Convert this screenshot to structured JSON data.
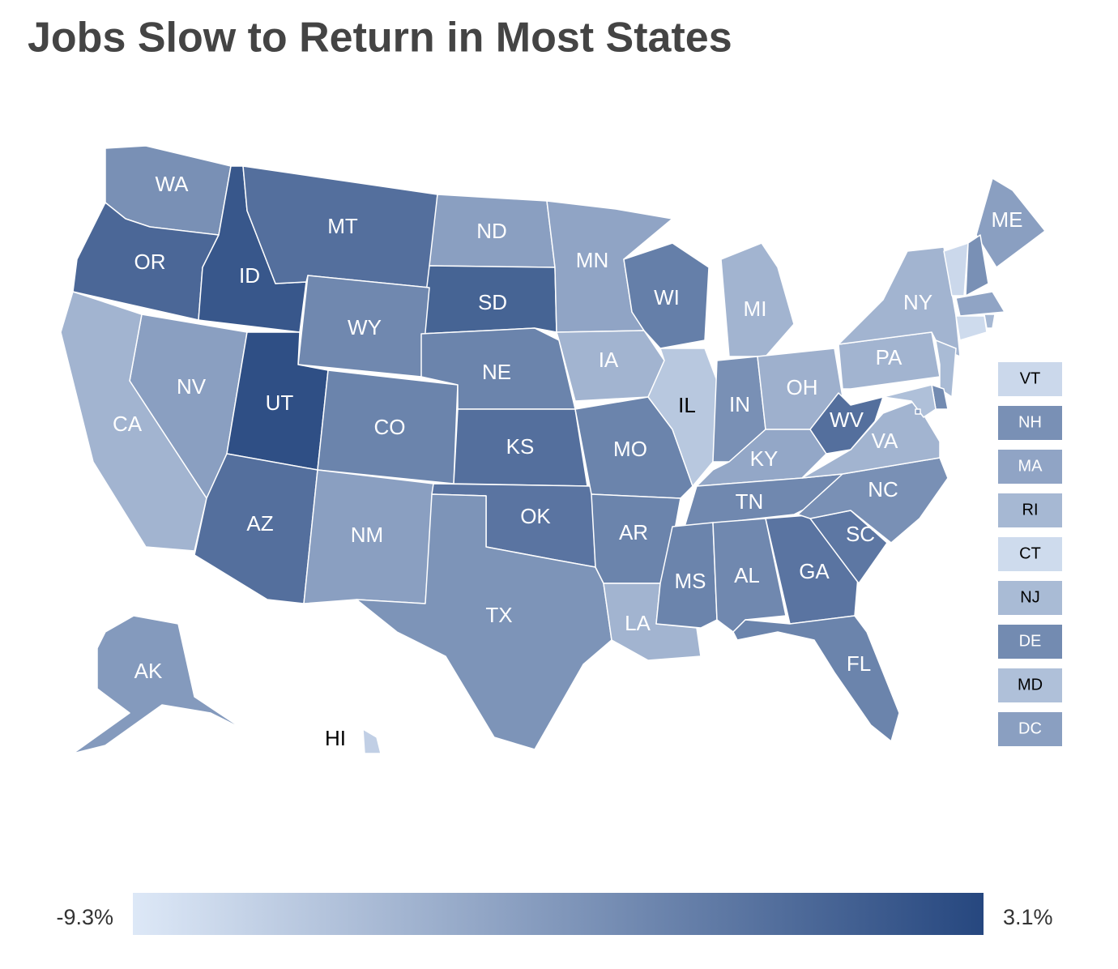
{
  "chart_data": {
    "type": "choropleth",
    "title": "Jobs Slow to Return in Most States",
    "colors": [
      "#dde8f7",
      "#26477f"
    ],
    "colorbar": [
      {
        "value": -9.3,
        "label": "-9.3%"
      },
      {
        "value": 3.1,
        "label": "3.1%"
      }
    ],
    "states": [
      {
        "name": "WA",
        "value": -2.5
      },
      {
        "name": "OR",
        "value": 0.6
      },
      {
        "name": "ID",
        "value": 1.9
      },
      {
        "name": "MT",
        "value": 0.0
      },
      {
        "name": "ND",
        "value": -3.7
      },
      {
        "name": "SD",
        "value": 0.9
      },
      {
        "name": "WY",
        "value": -1.9
      },
      {
        "name": "NV",
        "value": -3.7
      },
      {
        "name": "UT",
        "value": 2.5
      },
      {
        "name": "CA",
        "value": -5.3
      },
      {
        "name": "CO",
        "value": -1.6
      },
      {
        "name": "NE",
        "value": -1.6
      },
      {
        "name": "KS",
        "value": 0.0
      },
      {
        "name": "AZ",
        "value": 0.0
      },
      {
        "name": "NM",
        "value": -3.7
      },
      {
        "name": "OK",
        "value": -0.4
      },
      {
        "name": "TX",
        "value": -2.8
      },
      {
        "name": "MN",
        "value": -4.1
      },
      {
        "name": "IA",
        "value": -5.3
      },
      {
        "name": "MO",
        "value": -1.6
      },
      {
        "name": "AR",
        "value": -1.6
      },
      {
        "name": "LA",
        "value": -5.3
      },
      {
        "name": "WI",
        "value": -1.2
      },
      {
        "name": "IL",
        "value": -6.8
      },
      {
        "name": "MI",
        "value": -5.3
      },
      {
        "name": "IN",
        "value": -2.5
      },
      {
        "name": "OH",
        "value": -5.0
      },
      {
        "name": "KY",
        "value": -4.3
      },
      {
        "name": "TN",
        "value": -1.9
      },
      {
        "name": "MS",
        "value": -1.6
      },
      {
        "name": "AL",
        "value": -1.9
      },
      {
        "name": "GA",
        "value": -0.4
      },
      {
        "name": "FL",
        "value": -1.6
      },
      {
        "name": "SC",
        "value": -0.6
      },
      {
        "name": "NC",
        "value": -2.5
      },
      {
        "name": "VA",
        "value": -5.3
      },
      {
        "name": "WV",
        "value": 0.0
      },
      {
        "name": "PA",
        "value": -5.3
      },
      {
        "name": "NY",
        "value": -5.3
      },
      {
        "name": "ME",
        "value": -3.7
      },
      {
        "name": "AK",
        "value": -3.3
      },
      {
        "name": "HI",
        "value": -7.4
      },
      {
        "name": "VT",
        "value": -8.1
      },
      {
        "name": "NH",
        "value": -2.5
      },
      {
        "name": "MA",
        "value": -4.1
      },
      {
        "name": "RI",
        "value": -5.6
      },
      {
        "name": "CT",
        "value": -8.3
      },
      {
        "name": "NJ",
        "value": -5.8
      },
      {
        "name": "DE",
        "value": -2.1
      },
      {
        "name": "MD",
        "value": -6.2
      },
      {
        "name": "DC",
        "value": -3.7
      }
    ]
  }
}
